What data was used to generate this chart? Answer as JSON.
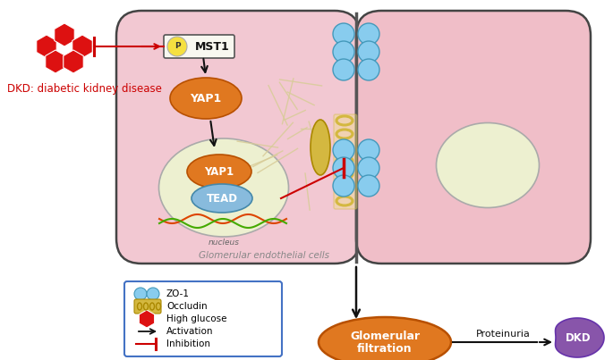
{
  "bg_color": "#ffffff",
  "cell_fill": "#f2c8d2",
  "cell_fill2": "#f0bec8",
  "cell_edge": "#444444",
  "nucleus_fill": "#edf0d0",
  "nucleus_edge": "#aaaaaa",
  "yap1_color": "#e07820",
  "yap1_edge": "#b85000",
  "tead_fill": "#88bbdd",
  "tead_edge": "#4488aa",
  "blue_circle": "#88ccee",
  "blue_circle_edge": "#4499bb",
  "red_color": "#cc0000",
  "black_color": "#111111",
  "hg_color": "#dd1111",
  "glom_color": "#e07820",
  "kidney_color": "#8855aa",
  "occludin_color": "#d4b840",
  "dna1_color": "#dd4400",
  "dna2_color": "#44aa44",
  "filament_color": "#d8cc98",
  "legend_border": "#4472c4",
  "p_fill": "#f5e040",
  "mst1_border": "#555555",
  "label_dkd": "DKD: diabetic kidney disease",
  "label_glom_endo": "Glomerular endothelial cells",
  "label_nucleus": "nucleus",
  "label_mst1": "MST1",
  "label_yap1": "YAP1",
  "label_tead": "TEAD",
  "label_p": "P",
  "label_glom_filt1": "Glomerular",
  "label_glom_filt2": "filtration",
  "label_proteinuria": "Proteinuria",
  "label_dkd_right": "DKD"
}
